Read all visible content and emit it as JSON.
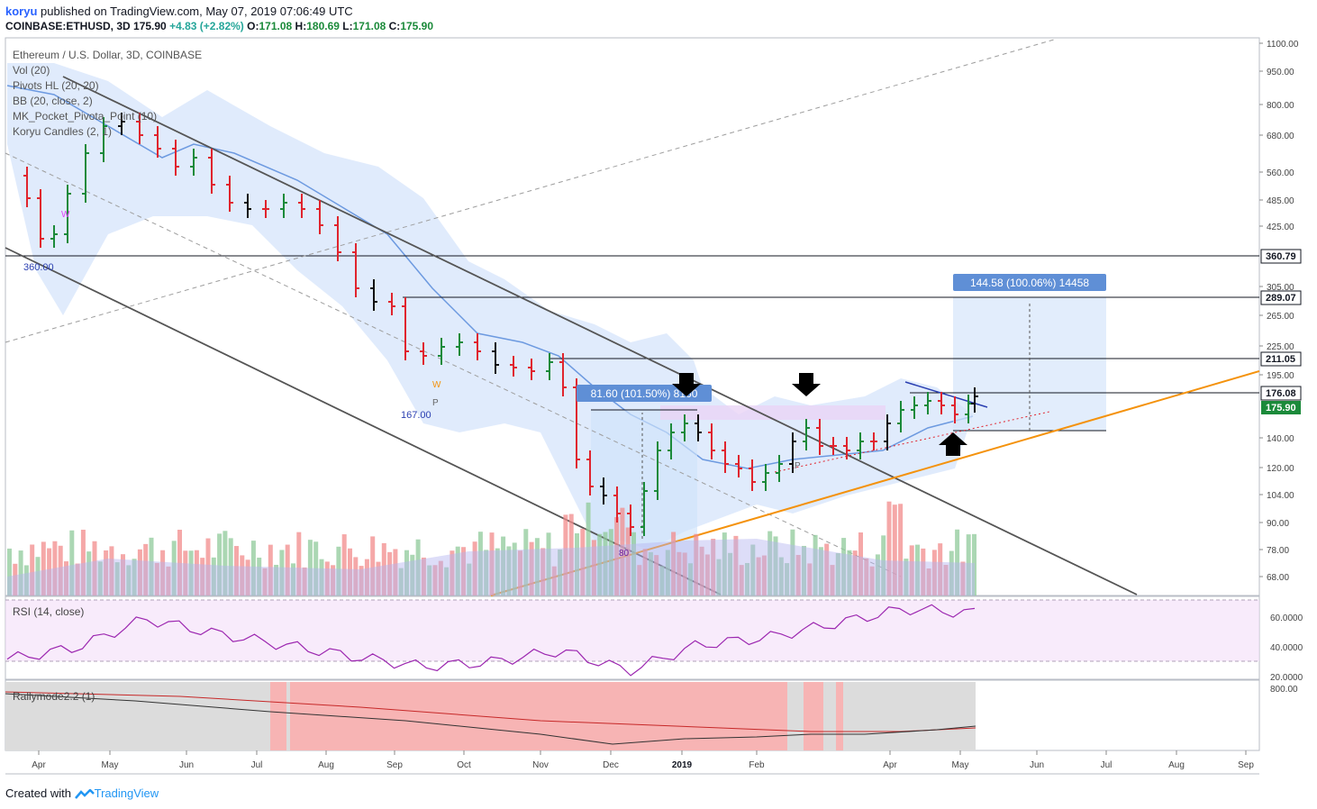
{
  "header": {
    "author": "koryu",
    "published": "published on TradingView.com, May 07, 2019 07:06:49 UTC",
    "symbol_line": "COINBASE:ETHUSD, 3D",
    "last": "175.90",
    "change": "+4.83 (+2.82%)",
    "o_label": "O:",
    "o_val": "171.08",
    "h_label": "H:",
    "h_val": "180.69",
    "l_label": "L:",
    "l_val": "171.08",
    "c_label": "C:",
    "c_val": "175.90"
  },
  "legend": {
    "title": "Ethereum / U.S. Dollar, 3D, COINBASE",
    "indicators": [
      "Vol (20)",
      "Pivots HL (20, 20)",
      "BB (20, close, 2)",
      "MK_Pocket_Pivota_Point (10)",
      "Koryu Candles (2, 1)"
    ]
  },
  "rsi": {
    "label": "RSI (14, close)",
    "ticks": [
      "60.0000",
      "40.0000",
      "20.0000"
    ]
  },
  "rally": {
    "label": "Rallymode2.2 (1)",
    "tick": "800.00"
  },
  "annotations": {
    "measure_left": "81.60 (101.50%) 8160",
    "measure_right": "144.58 (100.06%) 14458",
    "pivot_high": "360.00",
    "pivot_low": "167.00",
    "p1": "P",
    "p2": "P",
    "w1": "W",
    "w2": "W",
    "eighty": "80"
  },
  "price_scale": {
    "ticks": [
      "1100.00",
      "950.00",
      "800.00",
      "680.00",
      "560.00",
      "485.00",
      "425.00",
      "305.00",
      "265.00",
      "225.00",
      "195.00",
      "140.00",
      "120.00",
      "104.00",
      "90.00",
      "78.00",
      "68.00"
    ],
    "levels": [
      "360.79",
      "289.07",
      "211.05",
      "176.08"
    ],
    "current": "175.90"
  },
  "time_scale": [
    "Apr",
    "May",
    "Jun",
    "Jul",
    "Aug",
    "Sep",
    "Oct",
    "Nov",
    "Dec",
    "2019",
    "Feb",
    "Apr",
    "May",
    "Jun",
    "Jul",
    "Aug",
    "Sep"
  ],
  "footer": {
    "prefix": "Created with",
    "brand": "TradingView"
  },
  "colors": {
    "up": "#1b8a3a",
    "down": "#e0242e",
    "bb_fill": "#dbe7fb",
    "bb_mid": "#6d9ae0",
    "trend": "#f4920c",
    "rsi_band": "#f3ddf9",
    "rsi_line": "#9c27b0"
  },
  "chart_data": {
    "type": "candlestick",
    "timeframe": "3D",
    "yscale": "log",
    "x": [
      "2018-03-22",
      "2018-04-16",
      "2018-05-16",
      "2018-06-16",
      "2018-07-16",
      "2018-08-16",
      "2018-09-16",
      "2018-10-16",
      "2018-11-16",
      "2018-12-16",
      "2019-01-16",
      "2019-02-16",
      "2019-03-16",
      "2019-04-16",
      "2019-05-07"
    ],
    "close": [
      560,
      400,
      720,
      520,
      460,
      290,
      220,
      205,
      180,
      95,
      125,
      118,
      138,
      170,
      175.9
    ],
    "levels": [
      360.79,
      289.07,
      211.05,
      176.08
    ],
    "rsi": [
      30,
      38,
      58,
      48,
      40,
      32,
      25,
      28,
      36,
      22,
      40,
      45,
      55,
      65,
      62
    ]
  }
}
